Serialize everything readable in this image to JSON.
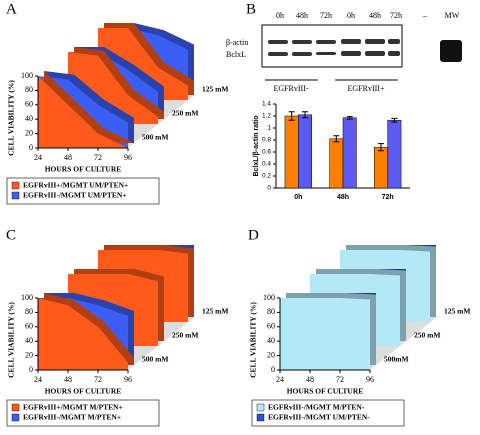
{
  "chart_data": [
    {
      "type": "ribbon3d",
      "panel": "A",
      "ylabel": "CELL VIABILITY (%)",
      "xlabel": "HOURS  OF  CULTURE",
      "x": [
        24,
        48,
        72,
        96
      ],
      "xlim": [
        24,
        96
      ],
      "ylim": [
        0,
        100
      ],
      "yticks": [
        0,
        20,
        40,
        60,
        80,
        100
      ],
      "depth_labels": [
        "125 mM",
        "250 mM",
        "500 mM"
      ],
      "series": [
        {
          "name": "EGFRvIII+/MGMT UM/PTEN+",
          "color": "#ff5a1a",
          "values": [
            [
              100,
              100,
              45,
              20
            ],
            [
              100,
              95,
              40,
              10
            ],
            [
              100,
              60,
              20,
              0
            ]
          ]
        },
        {
          "name": "EGFRvIII-/MGMT UM/PTEN+",
          "color": "#3b5ff5",
          "values": [
            [
              100,
              100,
              90,
              70
            ],
            [
              100,
              100,
              75,
              45
            ],
            [
              100,
              95,
              60,
              35
            ]
          ]
        }
      ]
    },
    {
      "type": "bar",
      "panel": "B",
      "ylabel": "BclxL/β-actin ratio",
      "categories": [
        "0h",
        "48h",
        "72h"
      ],
      "ylim": [
        0,
        1.4
      ],
      "yticks": [
        0,
        0.2,
        0.4,
        0.6,
        0.8,
        1,
        1.2,
        1.4
      ],
      "series": [
        {
          "color": "#ff7f00",
          "values": [
            1.2,
            0.82,
            0.68
          ],
          "errors": [
            0.07,
            0.05,
            0.06
          ]
        },
        {
          "color": "#5b5bf0",
          "values": [
            1.22,
            1.17,
            1.13
          ],
          "errors": [
            0.05,
            0.02,
            0.03
          ]
        }
      ]
    },
    {
      "type": "ribbon3d",
      "panel": "C",
      "ylabel": "CELL VIABILITY (%)",
      "xlabel": "HOURS  OF  CULTURE",
      "x": [
        24,
        48,
        72,
        96
      ],
      "xlim": [
        24,
        96
      ],
      "ylim": [
        0,
        100
      ],
      "yticks": [
        0,
        20,
        40,
        60,
        80,
        100
      ],
      "depth_labels": [
        "125 mM",
        "250 mM",
        "500 mM"
      ],
      "series": [
        {
          "name": "EGFRvIII+/MGMT M/PTEN+",
          "color": "#ff5a1a",
          "values": [
            [
              100,
              100,
              100,
              95
            ],
            [
              100,
              100,
              100,
              90
            ],
            [
              100,
              90,
              60,
              10
            ]
          ]
        },
        {
          "name": "EGFRvIII-/MGMT M/PTEN+",
          "color": "#3b5ff5",
          "values": [
            [
              100,
              100,
              100,
              100
            ],
            [
              100,
              100,
              95,
              85
            ],
            [
              100,
              100,
              90,
              75
            ]
          ]
        }
      ]
    },
    {
      "type": "ribbon3d",
      "panel": "D",
      "ylabel": "CELL VIABILITY (%)",
      "xlabel": "HOURS  OF  CULTURE",
      "x": [
        24,
        48,
        72,
        96
      ],
      "xlim": [
        24,
        96
      ],
      "ylim": [
        0,
        100
      ],
      "yticks": [
        0,
        20,
        40,
        60,
        80,
        100
      ],
      "depth_labels": [
        "125 mM",
        "250 mM",
        "500mM"
      ],
      "series": [
        {
          "name": "EGFRvIII-/MGMT M/PTEN-",
          "color": "#b3e8f7",
          "values": [
            [
              100,
              100,
              100,
              98
            ],
            [
              100,
              100,
              100,
              98
            ],
            [
              100,
              100,
              100,
              98
            ]
          ]
        },
        {
          "name": "EGFRvIII-/MGMT UM/PTEN-",
          "color": "#2e4fd6",
          "values": [
            [
              100,
              100,
              100,
              100
            ],
            [
              100,
              100,
              100,
              100
            ],
            [
              100,
              100,
              100,
              100
            ]
          ]
        }
      ]
    }
  ],
  "blot": {
    "lanes": [
      "0h",
      "48h",
      "72h",
      "0h",
      "48h",
      "72h",
      "–",
      "MW"
    ],
    "rows": [
      "β-actin",
      "BclxL"
    ],
    "groups": [
      "EGFRvIII-",
      "EGFRvIII+"
    ]
  }
}
